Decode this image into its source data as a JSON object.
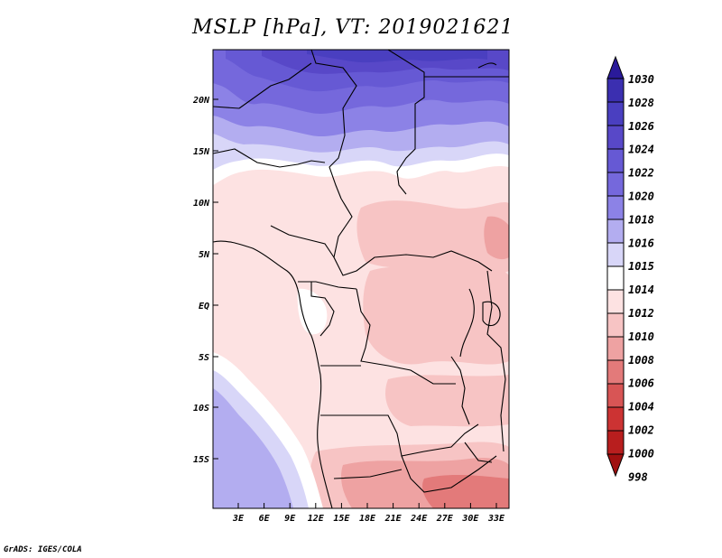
{
  "title": "MSLP [hPa], VT: 2019021621",
  "credit": "GrADS: IGES/COLA",
  "lat_labels": [
    "20N",
    "15N",
    "10N",
    "5N",
    "EQ",
    "5S",
    "10S",
    "15S"
  ],
  "lon_labels": [
    "3E",
    "6E",
    "9E",
    "12E",
    "15E",
    "18E",
    "21E",
    "24E",
    "27E",
    "30E",
    "33E"
  ],
  "colorbar": {
    "levels": [
      "1030",
      "1028",
      "1026",
      "1024",
      "1022",
      "1020",
      "1018",
      "1016",
      "1015",
      "1014",
      "1012",
      "1010",
      "1008",
      "1006",
      "1004",
      "1002",
      "1000",
      "998"
    ],
    "colors": [
      "#2a1a9a",
      "#3b2fb0",
      "#4a3fc0",
      "#5848c8",
      "#6659d4",
      "#7568dc",
      "#8c82e6",
      "#b3adf0",
      "#d8d6f8",
      "#ffffff",
      "#fde2e2",
      "#f7c4c4",
      "#eea2a2",
      "#e37a7a",
      "#d85555",
      "#cc3333",
      "#b81e1e",
      "#a01010"
    ]
  },
  "colors": {
    "frame": "#000000",
    "border": "#000000"
  }
}
